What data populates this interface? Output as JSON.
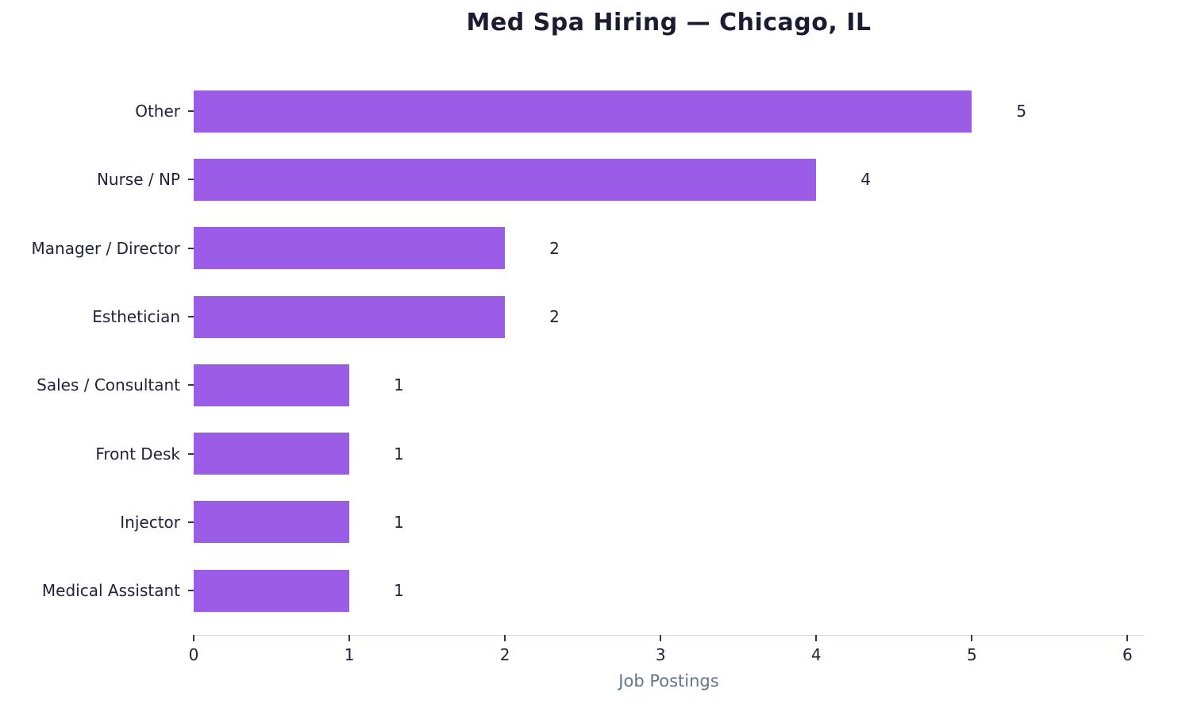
{
  "chart_data": {
    "type": "bar",
    "orientation": "horizontal",
    "title": "Med Spa Hiring — Chicago, IL",
    "categories": [
      "Other",
      "Nurse / NP",
      "Manager / Director",
      "Esthetician",
      "Sales / Consultant",
      "Front Desk",
      "Injector",
      "Medical Assistant"
    ],
    "values": [
      5,
      4,
      2,
      2,
      1,
      1,
      1,
      1
    ],
    "value_labels": [
      "5",
      "4",
      "2",
      "2",
      "1",
      "1",
      "1",
      "1"
    ],
    "xlabel": "Job Postings",
    "ylabel": "",
    "xticks": [
      "0",
      "1",
      "2",
      "3",
      "4",
      "5",
      "6"
    ],
    "xtick_values": [
      0,
      1,
      2,
      3,
      4,
      5,
      6
    ],
    "xlim": [
      0,
      6.1
    ],
    "grid": false,
    "legend": null,
    "bar_color": "#9b5de5",
    "colors": {
      "title_text": "#1b1b32",
      "tick_text": "#22223a",
      "axis_label_text": "#64748b",
      "spine": "#d9d9e3",
      "background": "#ffffff"
    }
  }
}
